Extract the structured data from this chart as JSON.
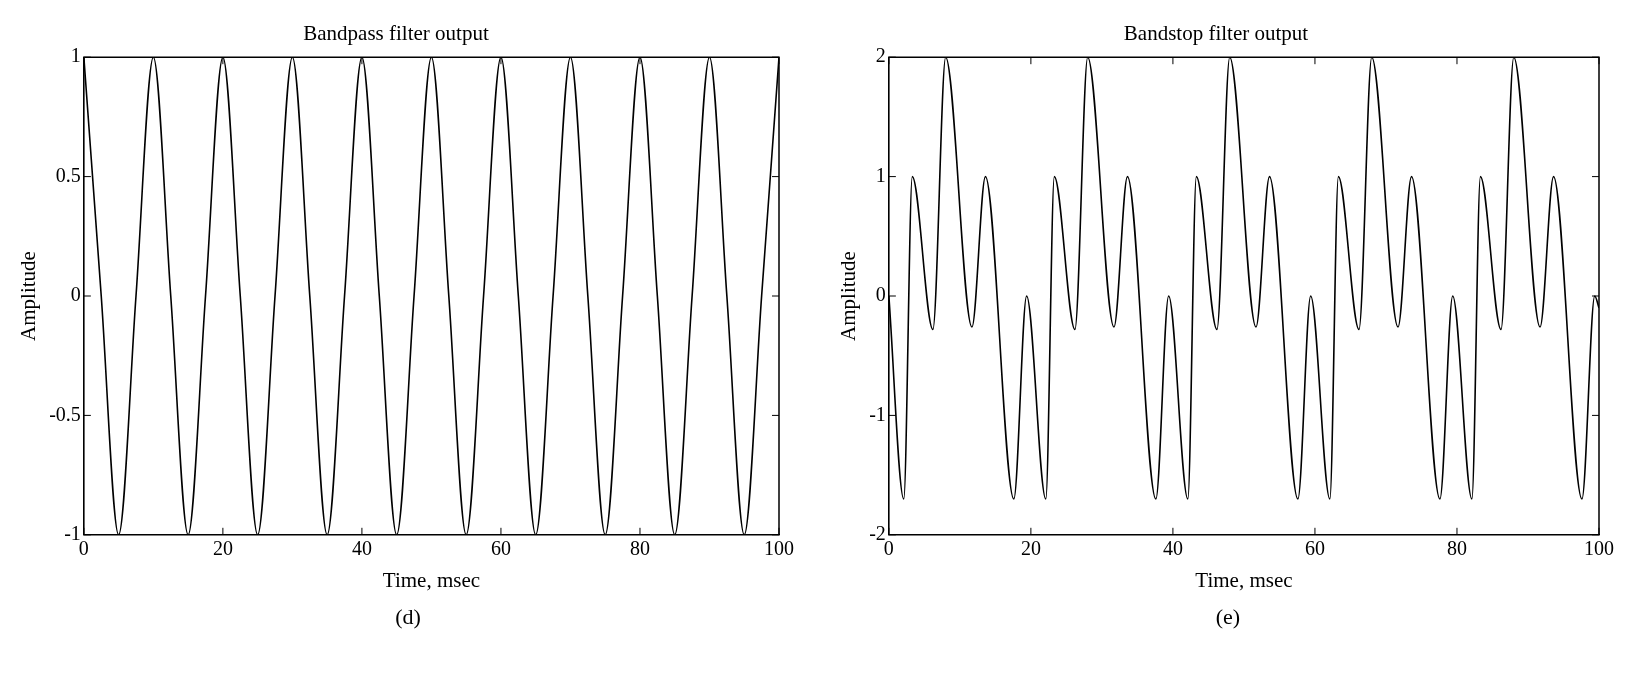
{
  "chart_data": [
    {
      "type": "line",
      "title": "Bandpass filter output",
      "xlabel": "Time, msec",
      "ylabel": "Amplitude",
      "xlim": [
        0,
        100
      ],
      "xticks": [
        0,
        20,
        40,
        60,
        80,
        100
      ],
      "ylim": [
        -1,
        1
      ],
      "yticks": [
        -1,
        -0.5,
        0,
        0.5,
        1
      ],
      "annotations": [
        "(d)"
      ],
      "x": [
        0,
        2.5,
        5,
        7.5,
        10,
        12.5,
        15,
        17.5,
        20,
        22.5,
        25,
        27.5,
        30,
        32.5,
        35,
        37.5,
        40,
        42.5,
        45,
        47.5,
        50,
        52.5,
        55,
        57.5,
        60,
        62.5,
        65,
        67.5,
        70,
        72.5,
        75,
        77.5,
        80,
        82.5,
        85,
        87.5,
        90,
        92.5,
        95,
        97.5,
        100
      ],
      "series": [
        {
          "color": "#000000",
          "values": [
            1,
            0,
            -1,
            0,
            1,
            0,
            -1,
            0,
            1,
            0,
            -1,
            0,
            1,
            0,
            -1,
            0,
            1,
            0,
            -1,
            0,
            1,
            0,
            -1,
            0,
            1,
            0,
            -1,
            0,
            1,
            0,
            -1,
            0,
            1,
            0,
            -1,
            0,
            1,
            0,
            -1,
            0,
            1
          ]
        }
      ]
    },
    {
      "type": "line",
      "title": "Bandstop filter output",
      "xlabel": "Time, msec",
      "ylabel": "Amplitude",
      "xlim": [
        0,
        100
      ],
      "xticks": [
        0,
        20,
        40,
        60,
        80,
        100
      ],
      "ylim": [
        -2,
        2
      ],
      "yticks": [
        -2,
        -1,
        0,
        1,
        2
      ],
      "annotations": [
        "(e)"
      ],
      "x": [
        0,
        2.1,
        3.3,
        6.2,
        8,
        11.7,
        13.6,
        17.6,
        19.4,
        22.1,
        23.3,
        26.2,
        28,
        31.7,
        33.6,
        37.6,
        39.4,
        42.1,
        43.3,
        46.2,
        48,
        51.7,
        53.6,
        57.6,
        59.4,
        62.1,
        63.3,
        66.2,
        68,
        71.7,
        73.6,
        77.6,
        79.4,
        82.1,
        83.3,
        86.2,
        88,
        91.7,
        93.6,
        97.6,
        99.4,
        100
      ],
      "series": [
        {
          "color": "#000000",
          "values": [
            0,
            -1.7,
            1,
            -0.28,
            2,
            -0.26,
            1,
            -1.7,
            0,
            -1.7,
            1,
            -0.28,
            2,
            -0.26,
            1,
            -1.7,
            0,
            -1.7,
            1,
            -0.28,
            2,
            -0.26,
            1,
            -1.7,
            0,
            -1.7,
            1,
            -0.28,
            2,
            -0.26,
            1,
            -1.7,
            0,
            -1.7,
            1,
            -0.28,
            2,
            -0.26,
            1,
            -1.7,
            0,
            -0.1
          ]
        }
      ]
    }
  ]
}
